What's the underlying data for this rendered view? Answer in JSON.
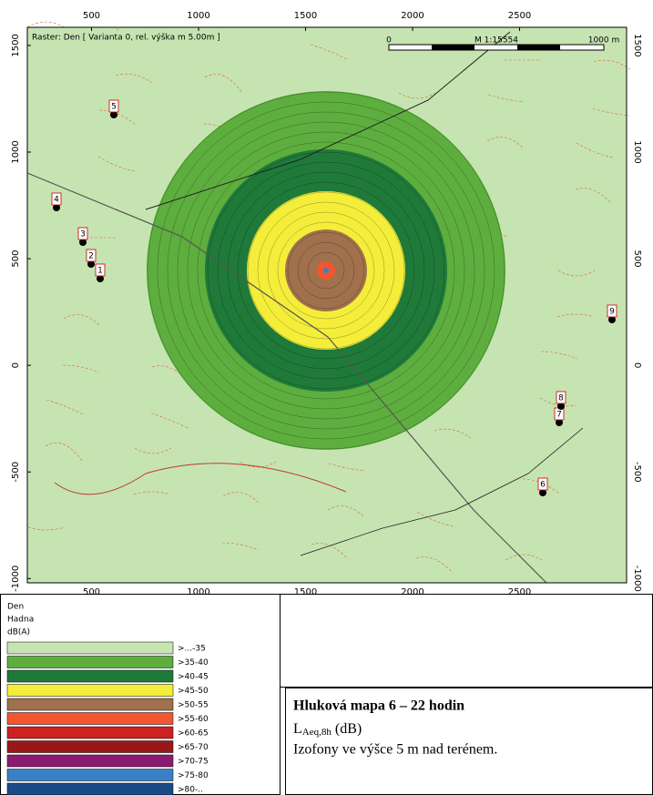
{
  "map": {
    "raster_label": "Raster: Den  [ Varianta 0, rel. výška m  5.00m ]",
    "scale_bar": {
      "start": "0",
      "ratio": "M 1:15554",
      "end": "1000 m"
    },
    "xlim": [
      200,
      3000
    ],
    "ylim": [
      -1020,
      1585
    ],
    "xticks": [
      500,
      1000,
      1500,
      2000,
      2500
    ],
    "yticks": [
      1500,
      1000,
      500,
      0,
      -500,
      -1000
    ],
    "receivers": [
      "1",
      "2",
      "3",
      "4",
      "5",
      "6",
      "7",
      "8",
      "9"
    ],
    "legend": {
      "lines": [
        "Den",
        "Hadna",
        "dB(A)"
      ],
      "items": [
        {
          "label": ">...-35",
          "color": "#c6e4b2"
        },
        {
          "label": ">35-40",
          "color": "#5dae3e"
        },
        {
          "label": ">40-45",
          "color": "#1f7a3a"
        },
        {
          "label": ">45-50",
          "color": "#f4ee3a"
        },
        {
          "label": ">50-55",
          "color": "#a0714c"
        },
        {
          "label": ">55-60",
          "color": "#f2552f"
        },
        {
          "label": ">60-65",
          "color": "#cc2222"
        },
        {
          "label": ">65-70",
          "color": "#981818"
        },
        {
          "label": ">70-75",
          "color": "#8b1b70"
        },
        {
          "label": ">75-80",
          "color": "#3a80c8"
        },
        {
          "label": ">80-..",
          "color": "#1a4a88"
        }
      ]
    },
    "info": {
      "title": "Hluková mapa 6 – 22 hodin",
      "quantity": {
        "main": "L",
        "sub": "Aeq,8h",
        "unit": "(dB)"
      },
      "note": "Izofony ve výšce 5 m nad terénem."
    }
  }
}
